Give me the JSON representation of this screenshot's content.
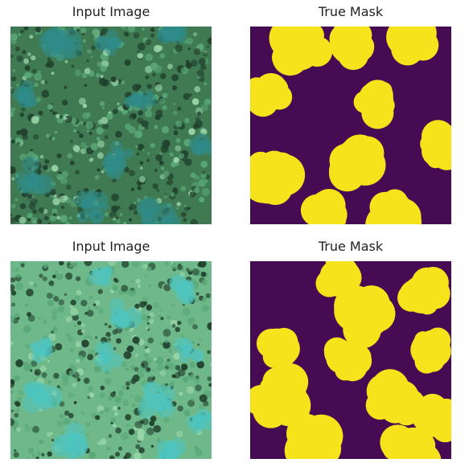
{
  "figure": {
    "panels": [
      {
        "title": "Input Image",
        "kind": "photo"
      },
      {
        "title": "True Mask",
        "kind": "mask"
      },
      {
        "title": "Input Image",
        "kind": "photo"
      },
      {
        "title": "True Mask",
        "kind": "mask"
      }
    ],
    "colors": {
      "mask_background": "#450c54",
      "mask_foreground": "#f7e31b",
      "foliage_light": "#5aa878",
      "foliage_dark": "#1f3f2c",
      "crown_teal": "#2f8c8a"
    }
  }
}
